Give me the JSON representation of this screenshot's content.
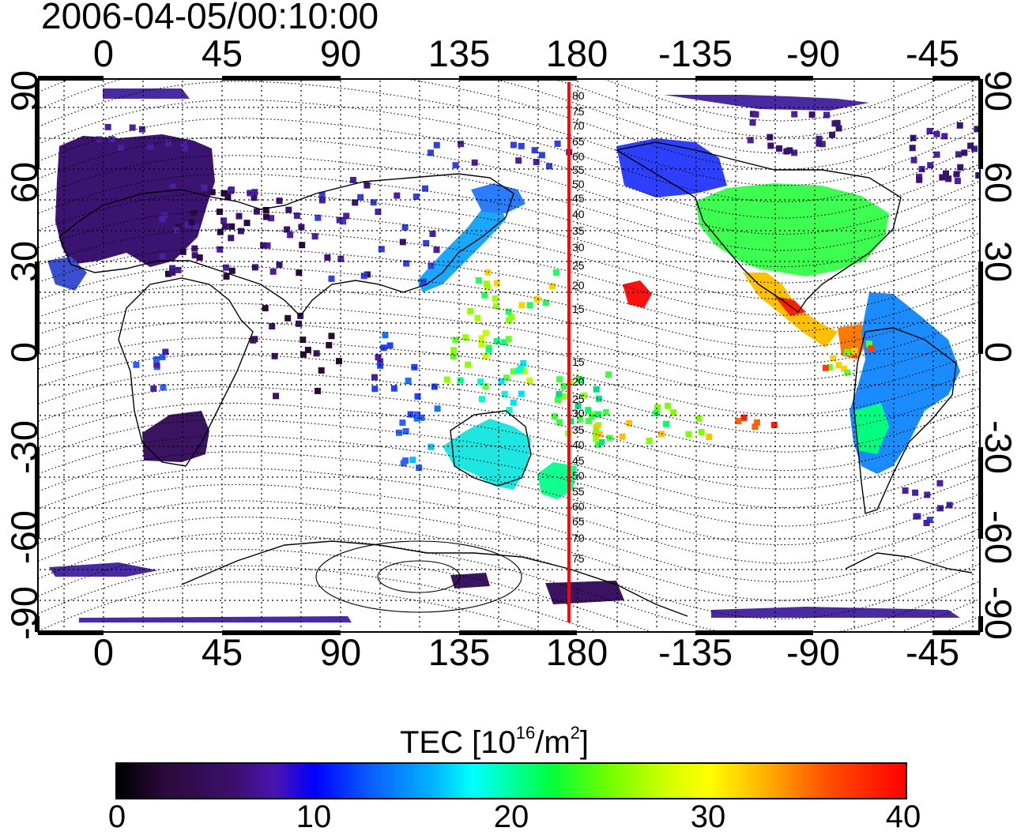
{
  "timestamp": "2006-04-05/00:10:00",
  "axes": {
    "lon_ticks": [
      "0",
      "45",
      "90",
      "135",
      "180",
      "-135",
      "-90",
      "-45"
    ],
    "lat_ticks": [
      "90",
      "60",
      "30",
      "0",
      "-30",
      "-60",
      "-90"
    ]
  },
  "meridian_label_values": [
    "80",
    "75",
    "70",
    "65",
    "60",
    "55",
    "50",
    "45",
    "40",
    "35",
    "30",
    "25",
    "20",
    "15",
    "15",
    "20",
    "25",
    "30",
    "35",
    "40",
    "45",
    "50",
    "55",
    "60",
    "65",
    "70",
    "75"
  ],
  "colorbar": {
    "title": "TEC  [10",
    "title_exp": "16",
    "title_unit": "/m",
    "title_unit_exp": "2",
    "title_close": "]",
    "ticks": [
      "0",
      "10",
      "20",
      "30",
      "40"
    ],
    "min": 0,
    "max": 40
  },
  "colors": {
    "meridian_line": "#ff0000",
    "frame": "#000000"
  }
}
